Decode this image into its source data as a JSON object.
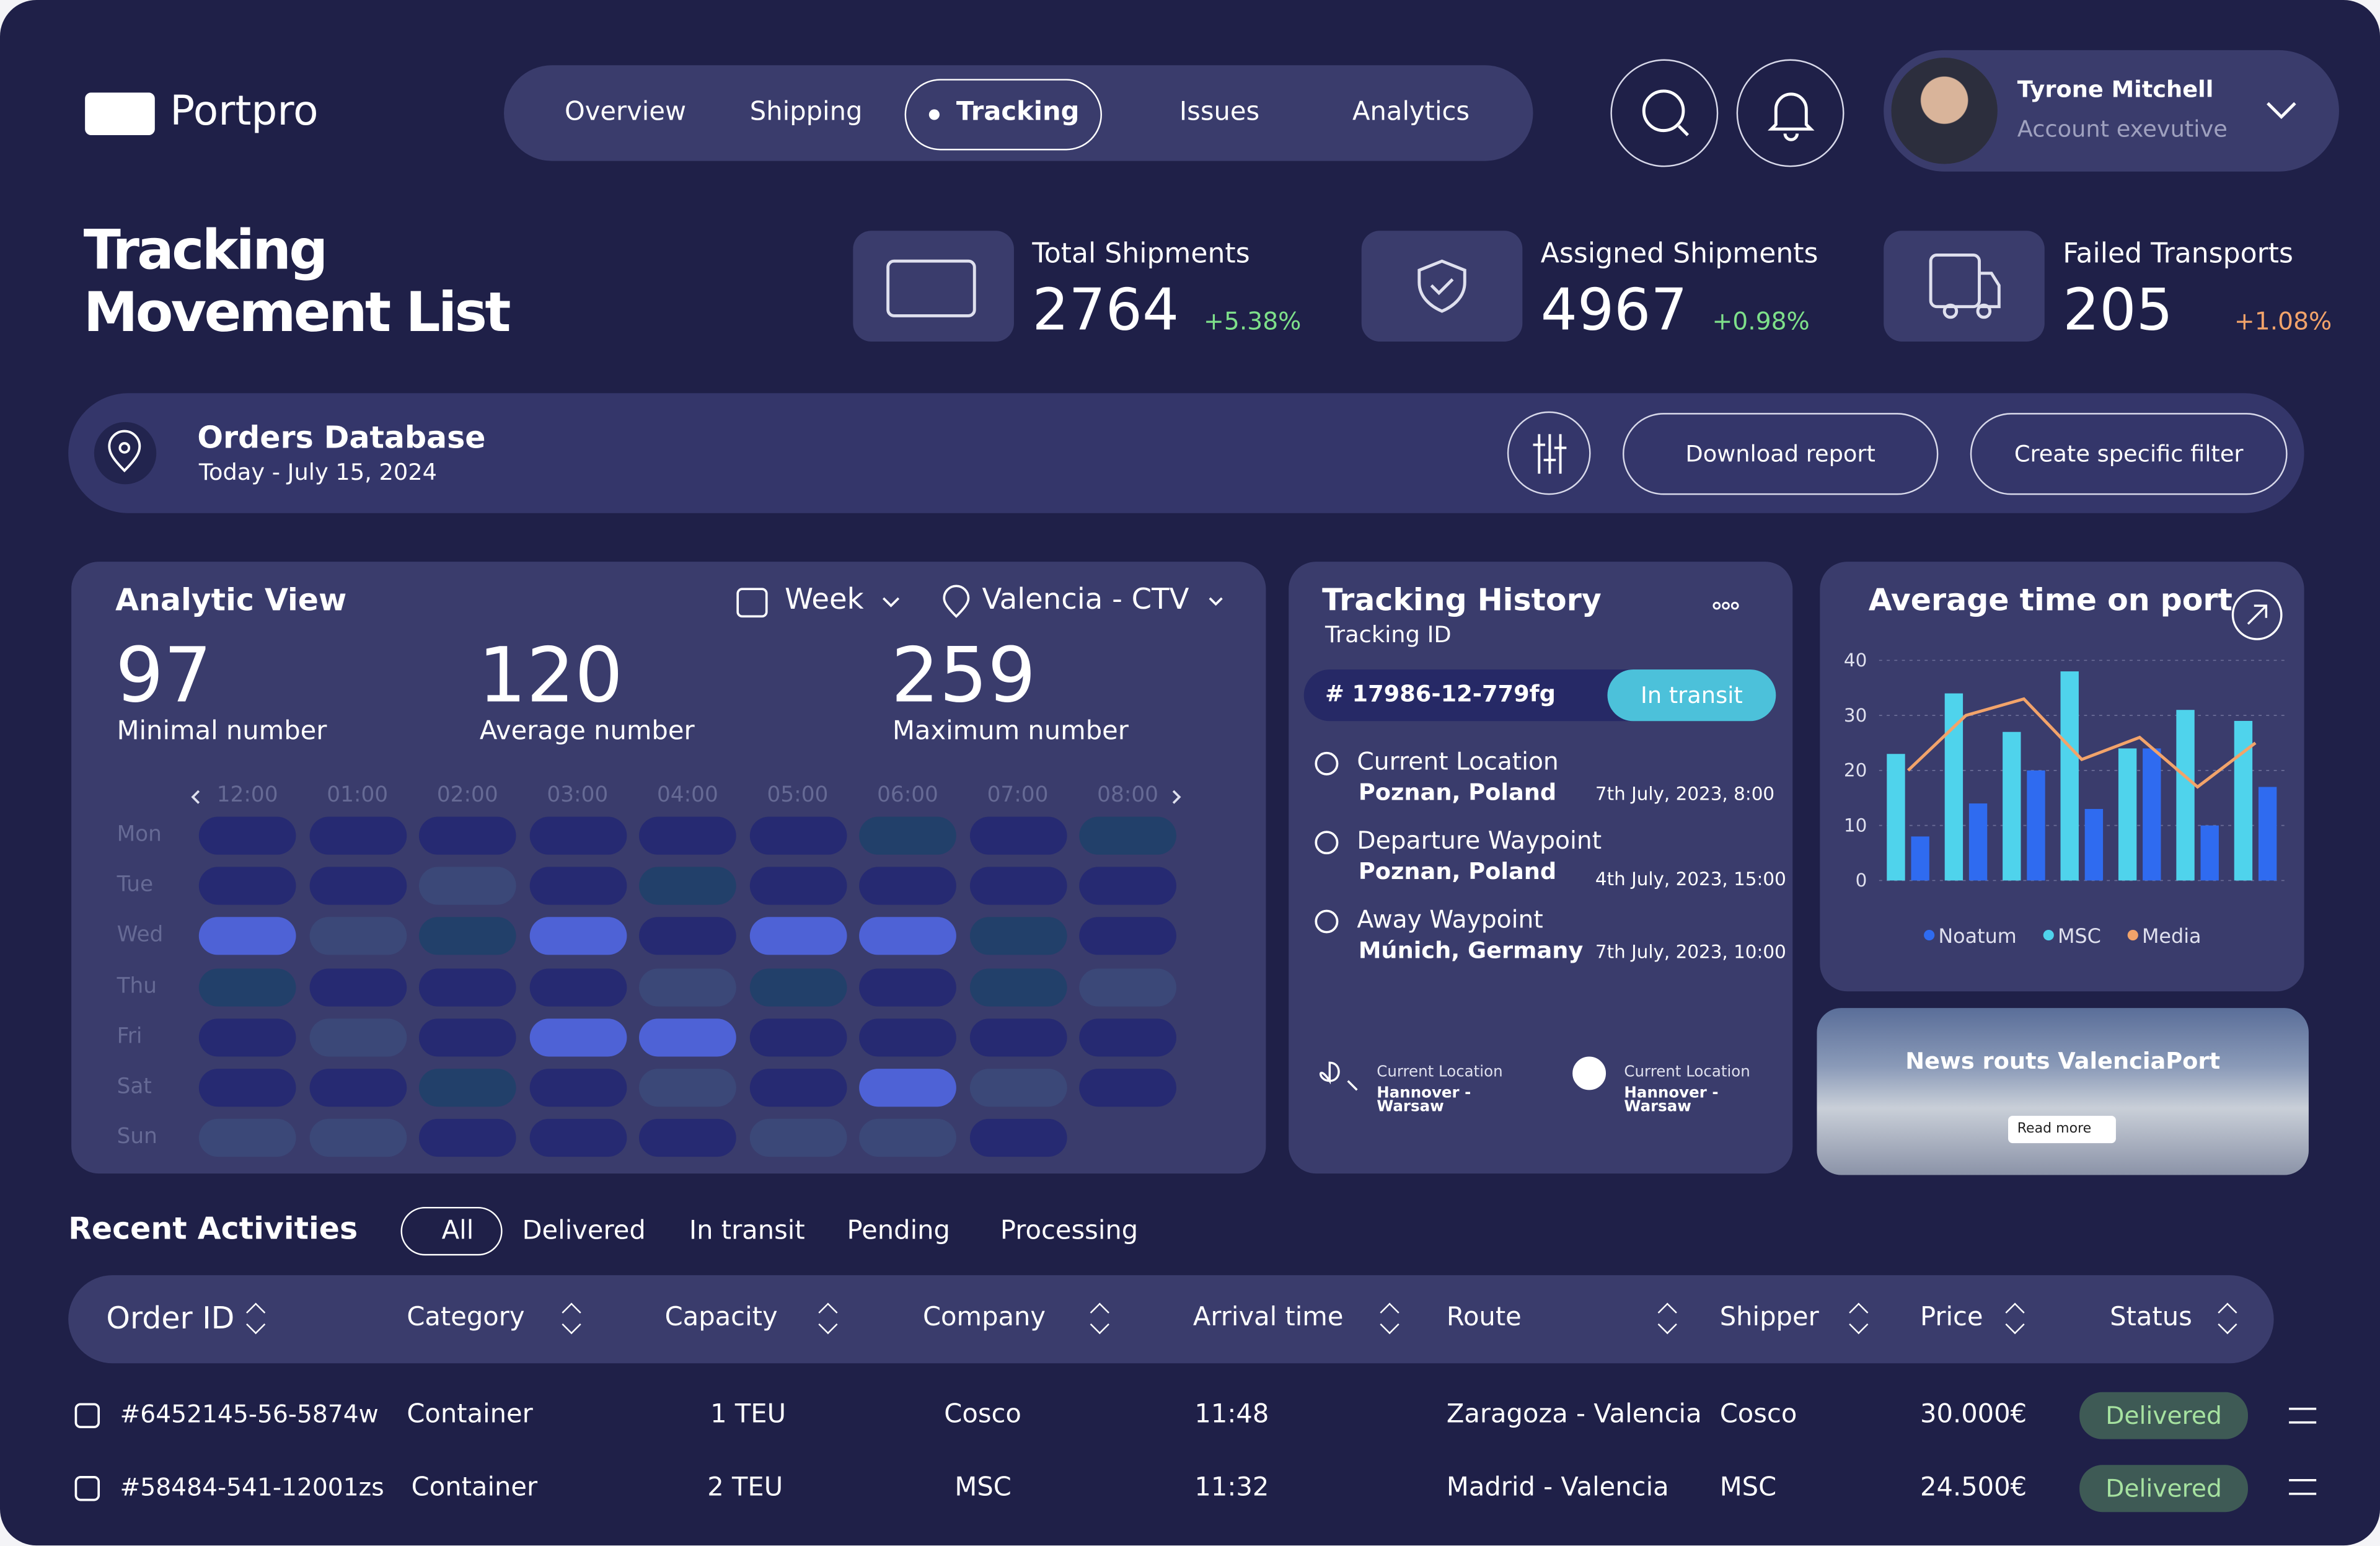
{
  "brand": "Portpro",
  "nav": [
    "Overview",
    "Shipping",
    "Tracking",
    "Issues",
    "Analytics"
  ],
  "active_nav": 2,
  "user": {
    "name": "Tyrone Mitchell",
    "role": "Account exevutive"
  },
  "page_title": [
    "Tracking",
    "Movement List"
  ],
  "stats": [
    {
      "label": "Total Shipments",
      "value": "2764",
      "change": "+5.38%",
      "color": "#7ee08a"
    },
    {
      "label": "Assigned Shipments",
      "value": "4967",
      "change": "+0.98%",
      "color": "#7ee08a"
    },
    {
      "label": "Failed Transports",
      "value": "205",
      "change": "+1.08%",
      "color": "#f2a36a"
    }
  ],
  "orders": {
    "title": "Orders Database",
    "date": "Today - July 15, 2024",
    "buttons": [
      "Download report",
      "Create specific filter"
    ]
  },
  "analytic": {
    "title": "Analytic View",
    "period": "Week",
    "location": "Valencia - CTV",
    "metrics": [
      {
        "value": "97",
        "label": "Minimal number"
      },
      {
        "value": "120",
        "label": "Average number"
      },
      {
        "value": "259",
        "label": "Maximum number"
      }
    ],
    "hours": [
      "12:00",
      "01:00",
      "02:00",
      "03:00",
      "04:00",
      "05:00",
      "06:00",
      "07:00",
      "08:00"
    ],
    "days": [
      "Mon",
      "Tue",
      "Wed",
      "Thu",
      "Fri",
      "Sat",
      "Sun"
    ],
    "level_colors": [
      "#3b4878",
      "#22406a",
      "#262a72",
      "#4e62d6"
    ],
    "levels": [
      [
        3,
        3,
        3,
        3,
        3,
        3,
        2,
        3,
        2
      ],
      [
        3,
        3,
        1,
        3,
        2,
        3,
        3,
        3,
        3
      ],
      [
        4,
        1,
        2,
        4,
        3,
        4,
        4,
        2,
        3
      ],
      [
        2,
        3,
        3,
        3,
        1,
        2,
        3,
        2,
        1
      ],
      [
        3,
        1,
        3,
        4,
        4,
        3,
        3,
        3,
        3
      ],
      [
        3,
        3,
        2,
        3,
        1,
        3,
        4,
        1,
        3
      ],
      [
        1,
        1,
        3,
        3,
        3,
        1,
        1,
        3,
        null
      ]
    ]
  },
  "tracking": {
    "title": "Tracking History",
    "subtitle": "Tracking ID",
    "id": "# 17986-12-779fg",
    "status": "In transit",
    "events": [
      {
        "type": "Current Location",
        "place": "Poznan, Poland",
        "time": "7th July, 2023, 8:00"
      },
      {
        "type": "Departure Waypoint",
        "place": "Poznan, Poland",
        "time": "4th July, 2023, 15:00"
      },
      {
        "type": "Away Waypoint",
        "place": "Múnich, Germany",
        "time": "7th July, 2023, 10:00"
      }
    ],
    "footer": [
      {
        "label": "Current Location",
        "route": "Hannover - Warsaw"
      },
      {
        "label": "Current Location",
        "route": "Hannover - Warsaw"
      }
    ]
  },
  "chart_data": {
    "type": "bar",
    "title": "Average time on port",
    "categories": [
      null,
      null,
      null,
      null,
      null,
      null,
      null
    ],
    "series": [
      {
        "name": "Noatum",
        "color": "#2f6bf0",
        "values": [
          8,
          14,
          20,
          13,
          24,
          10,
          17
        ]
      },
      {
        "name": "MSC",
        "color": "#4fd3ec",
        "values": [
          23,
          34,
          27,
          38,
          24,
          31,
          29
        ]
      },
      {
        "name": "Media",
        "color": "#f2a36a",
        "type": "line",
        "values": [
          20,
          30,
          33,
          22,
          26,
          17,
          25
        ]
      }
    ],
    "ylim": [
      0,
      40
    ],
    "yticks": [
      0,
      10,
      20,
      30,
      40
    ],
    "grid": true
  },
  "news": {
    "title": "News routs ValenciaPort",
    "button": "Read more"
  },
  "activities": {
    "title": "Recent Activities",
    "filters": [
      "All",
      "Delivered",
      "In transit",
      "Pending",
      "Processing"
    ],
    "columns": [
      "Order ID",
      "Category",
      "Capacity",
      "Company",
      "Arrival time",
      "Route",
      "Shipper",
      "Price",
      "Status"
    ],
    "rows": [
      [
        "#6452145-56-5874w",
        "Container",
        "1 TEU",
        "Cosco",
        "11:48",
        "Zaragoza - Valencia",
        "Cosco",
        "30.000€",
        "Delivered"
      ],
      [
        "#58484-541-12001zs",
        "Container",
        "2 TEU",
        "MSC",
        "11:32",
        "Madrid - Valencia",
        "MSC",
        "24.500€",
        "Delivered"
      ]
    ]
  }
}
